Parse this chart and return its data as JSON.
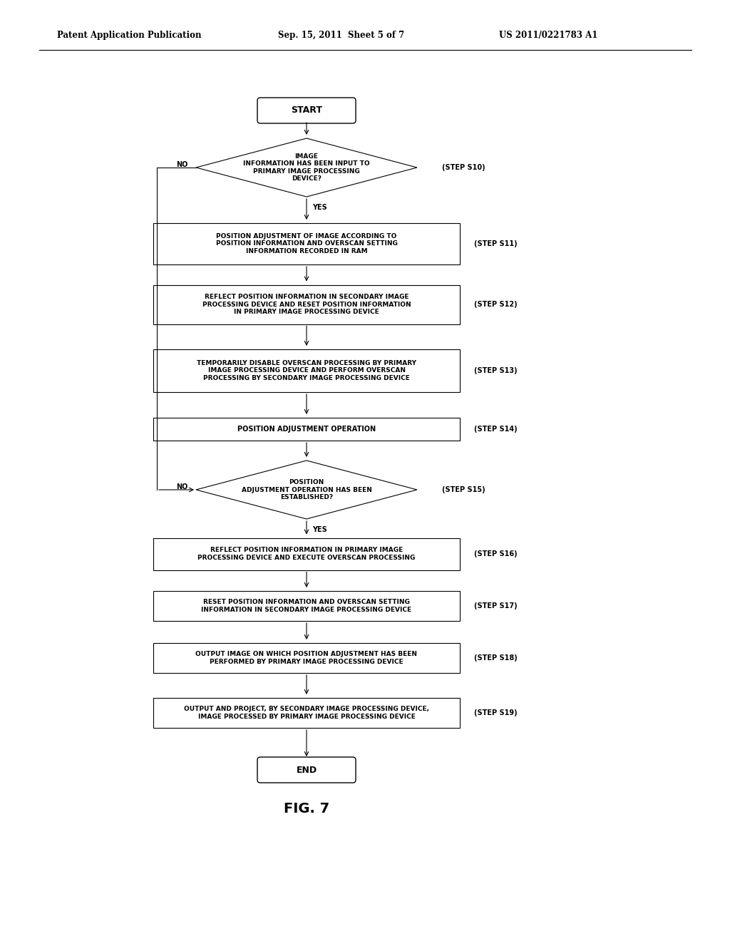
{
  "bg_color": "#ffffff",
  "header_left": "Patent Application Publication",
  "header_mid": "Sep. 15, 2011  Sheet 5 of 7",
  "header_right": "US 2011/0221783 A1",
  "fig_label": "FIG. 7"
}
